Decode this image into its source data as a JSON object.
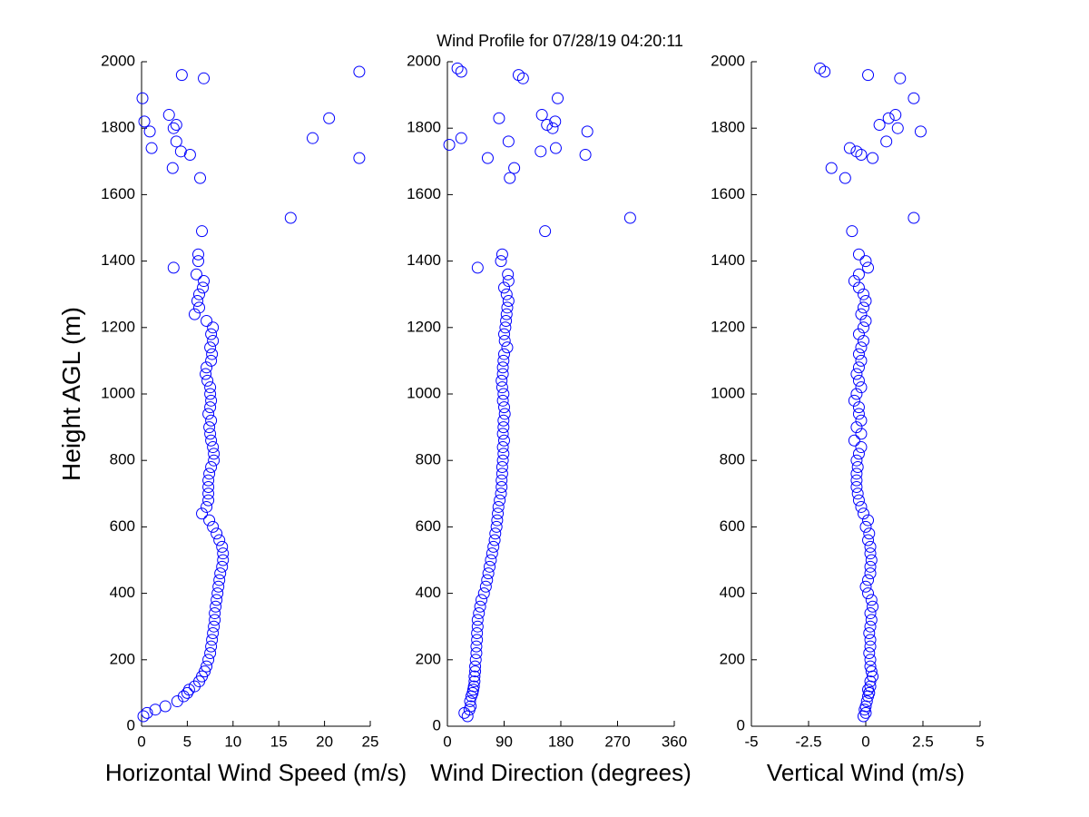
{
  "title": "Wind Profile for  07/28/19 04:20:11",
  "chart_data": [
    {
      "type": "scatter",
      "xlabel": "Horizontal Wind Speed (m/s)",
      "ylabel": "Height AGL (m)",
      "color": "#0000ff",
      "xlim": [
        0,
        25
      ],
      "xticks": [
        0,
        5,
        10,
        15,
        20,
        25
      ],
      "ylim": [
        0,
        2000
      ],
      "yticks": [
        0,
        200,
        400,
        600,
        800,
        1000,
        1200,
        1400,
        1600,
        1800,
        2000
      ],
      "x": [
        0.2,
        0.6,
        1.5,
        2.6,
        3.9,
        4.6,
        5.0,
        5.2,
        5.8,
        6.3,
        6.6,
        6.9,
        7.1,
        7.3,
        7.5,
        7.6,
        7.7,
        7.8,
        7.9,
        8.0,
        8.0,
        8.1,
        8.2,
        8.3,
        8.4,
        8.5,
        8.6,
        8.8,
        8.9,
        8.9,
        8.8,
        8.5,
        8.2,
        7.8,
        7.4,
        6.6,
        7.1,
        7.3,
        7.3,
        7.3,
        7.3,
        7.4,
        7.6,
        7.9,
        7.9,
        7.8,
        7.6,
        7.5,
        7.4,
        7.6,
        7.3,
        7.5,
        7.6,
        7.5,
        7.5,
        7.2,
        7.0,
        7.1,
        7.6,
        7.7,
        7.5,
        7.8,
        7.6,
        7.8,
        7.1,
        5.8,
        6.3,
        6.1,
        6.3,
        6.7,
        6.8,
        6.0,
        3.5,
        6.2,
        6.2,
        6.6,
        16.3,
        6.4,
        3.4,
        23.8,
        5.3,
        4.3,
        1.1,
        3.8,
        18.7,
        0.9,
        3.5,
        3.8,
        0.3,
        20.5,
        3,
        0.1,
        6.8,
        4.4,
        23.8
      ],
      "values": [
        30,
        40,
        50,
        60,
        75,
        90,
        100,
        110,
        120,
        135,
        150,
        165,
        180,
        200,
        220,
        240,
        260,
        280,
        300,
        320,
        340,
        360,
        380,
        400,
        420,
        440,
        460,
        480,
        500,
        520,
        540,
        560,
        580,
        600,
        620,
        640,
        660,
        680,
        700,
        720,
        740,
        760,
        780,
        800,
        820,
        840,
        860,
        880,
        900,
        920,
        940,
        960,
        980,
        1000,
        1020,
        1040,
        1060,
        1080,
        1100,
        1120,
        1140,
        1160,
        1180,
        1200,
        1220,
        1240,
        1260,
        1280,
        1300,
        1320,
        1340,
        1360,
        1380,
        1400,
        1420,
        1490,
        1530,
        1650,
        1680,
        1710,
        1720,
        1730,
        1740,
        1760,
        1770,
        1790,
        1800,
        1810,
        1820,
        1830,
        1840,
        1890,
        1950,
        1960,
        1970
      ]
    },
    {
      "type": "scatter",
      "xlabel": "Wind Direction (degrees)",
      "color": "#0000ff",
      "xlim": [
        0,
        360
      ],
      "xticks": [
        0,
        90,
        180,
        270,
        360
      ],
      "ylim": [
        0,
        2000
      ],
      "yticks": [
        0,
        200,
        400,
        600,
        800,
        1000,
        1200,
        1400,
        1600,
        1800,
        2000
      ],
      "x": [
        32,
        27,
        35,
        37,
        36,
        38,
        40,
        41,
        42,
        43,
        43,
        44,
        44,
        45,
        46,
        46,
        47,
        47,
        48,
        48,
        50,
        52,
        54,
        58,
        61,
        63,
        65,
        67,
        69,
        71,
        73,
        75,
        76,
        78,
        79,
        80,
        81,
        83,
        85,
        86,
        86,
        87,
        87,
        88,
        89,
        88,
        90,
        88,
        89,
        89,
        91,
        90,
        88,
        89,
        87,
        86,
        88,
        88,
        89,
        90,
        95,
        91,
        90,
        92,
        93,
        94,
        95,
        97,
        94,
        90,
        97,
        96,
        48,
        85,
        87,
        155,
        290,
        99,
        106,
        64,
        219,
        148,
        172,
        3,
        97,
        22,
        222,
        167,
        158,
        171,
        82,
        150,
        175,
        120,
        113,
        22,
        16
      ],
      "values": [
        30,
        40,
        50,
        60,
        75,
        90,
        100,
        110,
        120,
        135,
        150,
        165,
        180,
        200,
        220,
        240,
        260,
        280,
        300,
        320,
        340,
        360,
        380,
        400,
        420,
        440,
        460,
        480,
        500,
        520,
        540,
        560,
        580,
        600,
        620,
        640,
        660,
        680,
        700,
        720,
        740,
        760,
        780,
        800,
        820,
        840,
        860,
        880,
        900,
        920,
        940,
        960,
        980,
        1000,
        1020,
        1040,
        1060,
        1080,
        1100,
        1120,
        1140,
        1160,
        1180,
        1200,
        1220,
        1240,
        1260,
        1280,
        1300,
        1320,
        1340,
        1360,
        1380,
        1400,
        1420,
        1490,
        1530,
        1650,
        1680,
        1710,
        1720,
        1730,
        1740,
        1750,
        1760,
        1770,
        1790,
        1800,
        1810,
        1820,
        1830,
        1840,
        1890,
        1950,
        1960,
        1970,
        1980
      ]
    },
    {
      "type": "scatter",
      "xlabel": "Vertical Wind (m/s)",
      "color": "#0000ff",
      "xlim": [
        -5,
        5
      ],
      "xticks": [
        -5,
        -2.5,
        0,
        2.5,
        5
      ],
      "ylim": [
        0,
        2000
      ],
      "yticks": [
        0,
        200,
        400,
        600,
        800,
        1000,
        1200,
        1400,
        1600,
        1800,
        2000
      ],
      "x": [
        -0.1,
        0,
        -0.05,
        0,
        0.05,
        0.1,
        0.15,
        0.1,
        0.2,
        0.2,
        0.3,
        0.25,
        0.2,
        0.2,
        0.15,
        0.2,
        0.2,
        0.15,
        0.2,
        0.25,
        0.2,
        0.3,
        0.25,
        0.1,
        0,
        0.1,
        0.2,
        0.2,
        0.25,
        0.2,
        0.2,
        0.1,
        0.15,
        0,
        0.1,
        -0.1,
        -0.2,
        -0.3,
        -0.35,
        -0.4,
        -0.4,
        -0.4,
        -0.35,
        -0.4,
        -0.3,
        -0.2,
        -0.5,
        -0.2,
        -0.4,
        -0.2,
        -0.3,
        -0.3,
        -0.5,
        -0.4,
        -0.2,
        -0.3,
        -0.4,
        -0.3,
        -0.2,
        -0.3,
        -0.2,
        -0.1,
        -0.3,
        -0.1,
        0,
        -0.2,
        -0.1,
        0,
        -0.1,
        -0.3,
        -0.5,
        -0.3,
        0.1,
        0,
        -0.3,
        -0.6,
        2.1,
        -0.9,
        -1.5,
        0.3,
        -0.2,
        -0.4,
        -0.7,
        0.9,
        2.4,
        1.4,
        0.6,
        1.0,
        1.3,
        2.1,
        1.5,
        0.1,
        -1.8,
        -2.0
      ],
      "values": [
        30,
        40,
        50,
        60,
        75,
        90,
        100,
        110,
        120,
        135,
        150,
        165,
        180,
        200,
        220,
        240,
        260,
        280,
        300,
        320,
        340,
        360,
        380,
        400,
        420,
        440,
        460,
        480,
        500,
        520,
        540,
        560,
        580,
        600,
        620,
        640,
        660,
        680,
        700,
        720,
        740,
        760,
        780,
        800,
        820,
        840,
        860,
        880,
        900,
        920,
        940,
        960,
        980,
        1000,
        1020,
        1040,
        1060,
        1080,
        1100,
        1120,
        1140,
        1160,
        1180,
        1200,
        1220,
        1240,
        1260,
        1280,
        1300,
        1320,
        1340,
        1360,
        1380,
        1400,
        1420,
        1490,
        1530,
        1650,
        1680,
        1710,
        1720,
        1730,
        1740,
        1760,
        1790,
        1800,
        1810,
        1830,
        1840,
        1890,
        1950,
        1960,
        1970,
        1980
      ]
    }
  ]
}
